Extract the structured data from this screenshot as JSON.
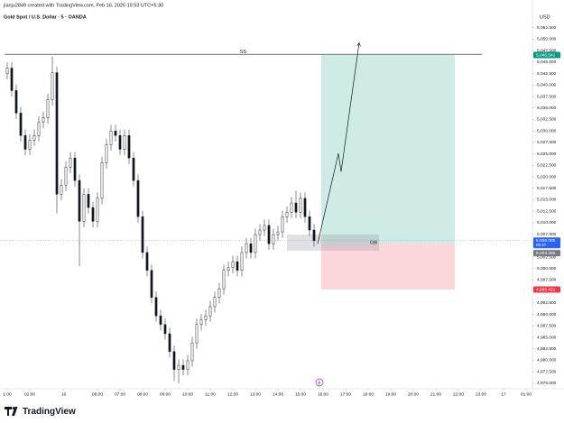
{
  "chart_data": {
    "type": "candlestick",
    "credit": "jianju2849 created with TradingView.com, Feb 16, 2026 15:53 UTC+5:30",
    "title": "Gold Spot / U.S. Dollar · 5 · OANDA",
    "currency": "USD",
    "brand": "TradingView",
    "colors": {
      "up": "#ffffff",
      "down": "#131722",
      "wick": "#131722"
    },
    "grid": false,
    "xlim": [
      0.68,
      24.28
    ],
    "ylim": [
      4974,
      5055
    ],
    "xticks": [
      {
        "value": 1,
        "label": "1:00"
      },
      {
        "value": 2,
        "label": "02:00"
      },
      {
        "value": 3.5,
        "label": "16"
      },
      {
        "value": 5,
        "label": "06:00"
      },
      {
        "value": 6,
        "label": "07:00"
      },
      {
        "value": 7,
        "label": "08:00"
      },
      {
        "value": 8,
        "label": "09:00"
      },
      {
        "value": 9,
        "label": "10:00"
      },
      {
        "value": 10,
        "label": "11:00"
      },
      {
        "value": 11,
        "label": "12:00"
      },
      {
        "value": 12,
        "label": "13:00"
      },
      {
        "value": 13,
        "label": "14:00"
      },
      {
        "value": 14,
        "label": "15:00"
      },
      {
        "value": 15,
        "label": "16:00"
      },
      {
        "value": 16,
        "label": "17:00"
      },
      {
        "value": 17,
        "label": "18:00"
      },
      {
        "value": 18,
        "label": "19:00"
      },
      {
        "value": 19,
        "label": "20:00"
      },
      {
        "value": 20,
        "label": "21:00"
      },
      {
        "value": 21,
        "label": "22:00"
      },
      {
        "value": 22,
        "label": "23:00"
      },
      {
        "value": 23,
        "label": "17"
      },
      {
        "value": 24,
        "label": "01:00"
      }
    ],
    "yticks": [
      {
        "value": 4975,
        "label": "4,975.000"
      },
      {
        "value": 4977.5,
        "label": "4,977.500"
      },
      {
        "value": 4980,
        "label": "4,980.000"
      },
      {
        "value": 4982.5,
        "label": "4,982.500"
      },
      {
        "value": 4985,
        "label": "4,985.000"
      },
      {
        "value": 4987.5,
        "label": "4,987.500"
      },
      {
        "value": 4990,
        "label": "4,990.000"
      },
      {
        "value": 4992.5,
        "label": "4,992.500"
      },
      {
        "value": 4997.5,
        "label": "4,997.500"
      },
      {
        "value": 5000,
        "label": "5,000.000"
      },
      {
        "value": 5002.5,
        "label": "5,002.500"
      },
      {
        "value": 5007.5,
        "label": "5,007.500"
      },
      {
        "value": 5010,
        "label": "5,010.000"
      },
      {
        "value": 5012.5,
        "label": "5,012.500"
      },
      {
        "value": 5015,
        "label": "5,015.000"
      },
      {
        "value": 5017.5,
        "label": "5,017.500"
      },
      {
        "value": 5020,
        "label": "5,020.000"
      },
      {
        "value": 5022.5,
        "label": "5,022.500"
      },
      {
        "value": 5025,
        "label": "5,025.000"
      },
      {
        "value": 5027.5,
        "label": "5,027.500"
      },
      {
        "value": 5030,
        "label": "5,030.000"
      },
      {
        "value": 5032.5,
        "label": "5,032.500"
      },
      {
        "value": 5035,
        "label": "5,035.000"
      },
      {
        "value": 5037.5,
        "label": "5,037.500"
      },
      {
        "value": 5040,
        "label": "5,040.000"
      },
      {
        "value": 5042.5,
        "label": "5,042.500"
      },
      {
        "value": 5045,
        "label": "5,045.000"
      },
      {
        "value": 5047.5,
        "label": "5,047.500"
      },
      {
        "value": 5050,
        "label": "5,050.000"
      },
      {
        "value": 5052.5,
        "label": "5,052.500"
      }
    ],
    "x": [
      1.0,
      1.2,
      1.4,
      1.6,
      1.8,
      2.0,
      2.2,
      2.4,
      2.6,
      2.8,
      3.0,
      3.2,
      3.4,
      3.6,
      3.8,
      4.0,
      4.2,
      4.4,
      4.6,
      4.8,
      5.0,
      5.2,
      5.4,
      5.6,
      5.8,
      6.0,
      6.2,
      6.4,
      6.6,
      6.8,
      7.0,
      7.2,
      7.4,
      7.6,
      7.8,
      8.0,
      8.2,
      8.4,
      8.6,
      8.8,
      9.0,
      9.2,
      9.4,
      9.6,
      9.8,
      10.0,
      10.2,
      10.4,
      10.6,
      10.8,
      11.0,
      11.2,
      11.4,
      11.6,
      11.8,
      12.0,
      12.2,
      12.4,
      12.6,
      12.8,
      13.0,
      13.2,
      13.4,
      13.6,
      13.8,
      14.0,
      14.2,
      14.4,
      14.6
    ],
    "open": [
      5042.5,
      5043.7,
      5038.8,
      5033.9,
      5029.0,
      5026.0,
      5028.0,
      5029.0,
      5031.9,
      5032.9,
      5036.8,
      5042.7,
      5016.2,
      5018.2,
      5022.1,
      5024.1,
      5019.2,
      5010.3,
      5016.2,
      5013.3,
      5010.3,
      5015.3,
      5023.1,
      5027.0,
      5030.0,
      5029.0,
      5026.0,
      5029.0,
      5024.1,
      5019.2,
      5011.3,
      5003.5,
      4999.6,
      4993.7,
      4989.7,
      4987.8,
      4985.8,
      4981.9,
      4978.0,
      4978.9,
      4978.0,
      4979.9,
      4983.8,
      4987.8,
      4988.8,
      4989.7,
      4991.7,
      4993.7,
      4995.6,
      4999.6,
      5000.2,
      5001.5,
      4999.6,
      5003.5,
      5005.4,
      5003.5,
      5007.4,
      5008.4,
      5009.4,
      5005.4,
      5007.4,
      5008.0,
      5011.3,
      5012.3,
      5014.3,
      5012.3,
      5015.3,
      5011.3,
      5008.4
    ],
    "high": [
      5045.0,
      5045.0,
      5040.1,
      5035.2,
      5030.3,
      5029.3,
      5030.3,
      5033.2,
      5034.2,
      5038.1,
      5046.3,
      5044.0,
      5019.5,
      5023.4,
      5025.4,
      5025.4,
      5020.5,
      5017.5,
      5017.5,
      5014.6,
      5016.6,
      5024.4,
      5028.3,
      5031.3,
      5031.3,
      5030.3,
      5030.3,
      5030.3,
      5025.4,
      5020.5,
      5012.6,
      5004.8,
      5000.9,
      4995.0,
      4991.0,
      4989.1,
      4987.1,
      4983.2,
      4980.2,
      4980.2,
      4981.2,
      4985.1,
      4989.1,
      4990.1,
      4991.0,
      4993.0,
      4995.0,
      4996.9,
      5000.9,
      5001.5,
      5002.8,
      5002.8,
      5004.8,
      5006.7,
      5006.7,
      5008.7,
      5009.7,
      5010.7,
      5010.7,
      5008.7,
      5009.3,
      5012.6,
      5013.6,
      5015.6,
      5017.0,
      5016.6,
      5016.6,
      5012.6,
      5009.7
    ],
    "low": [
      5041.2,
      5037.5,
      5032.6,
      5027.7,
      5024.7,
      5024.7,
      5026.7,
      5027.7,
      5030.6,
      5031.6,
      5035.5,
      5012.0,
      5014.9,
      5016.9,
      5020.8,
      5017.9,
      5000.5,
      5009.0,
      5012.0,
      5009.0,
      5009.0,
      5014.0,
      5021.8,
      5025.7,
      5027.7,
      5024.7,
      5024.7,
      5022.8,
      5017.9,
      5010.0,
      5002.2,
      4998.3,
      4992.4,
      4988.4,
      4986.5,
      4984.5,
      4980.6,
      4975.5,
      4975.0,
      4976.7,
      4976.7,
      4978.6,
      4982.5,
      4986.5,
      4987.5,
      4988.4,
      4990.4,
      4992.4,
      4994.3,
      4998.3,
      4998.9,
      4998.3,
      4998.3,
      5002.2,
      5002.2,
      5002.2,
      5006.1,
      5007.1,
      5004.1,
      5004.1,
      5006.1,
      5006.7,
      5010.0,
      5011.0,
      5011.0,
      5011.0,
      5010.0,
      5007.1,
      5004.8
    ],
    "close": [
      5043.7,
      5038.8,
      5033.9,
      5029.0,
      5026.0,
      5028.0,
      5029.0,
      5031.9,
      5032.9,
      5036.8,
      5042.7,
      5016.2,
      5018.2,
      5022.1,
      5024.1,
      5019.2,
      5010.3,
      5016.2,
      5013.3,
      5010.3,
      5015.3,
      5023.1,
      5027.0,
      5030.0,
      5029.0,
      5026.0,
      5029.0,
      5024.1,
      5019.2,
      5011.3,
      5003.5,
      4999.6,
      4993.7,
      4989.7,
      4987.8,
      4985.8,
      4981.9,
      4978.0,
      4978.9,
      4978.0,
      4979.9,
      4983.8,
      4987.8,
      4988.8,
      4989.7,
      4991.7,
      4993.7,
      4995.6,
      4999.6,
      5000.2,
      5001.5,
      4999.6,
      5003.5,
      5005.4,
      5003.5,
      5007.4,
      5008.4,
      5009.4,
      5005.4,
      5007.4,
      5008.0,
      5011.3,
      5012.3,
      5014.3,
      5012.3,
      5015.3,
      5011.3,
      5008.4,
      5006.1
    ],
    "ss_level": {
      "label": "SS",
      "value": 5046.7,
      "x": [
        0.88,
        22.04
      ]
    },
    "order_block": {
      "label": "OB",
      "top": 5007.4,
      "bottom": 5003.9,
      "x": [
        13.4,
        17.48
      ]
    },
    "position": {
      "x": [
        14.92,
        20.84
      ],
      "target": 5046.541,
      "entry": 5005.4,
      "stop": 4995.421
    },
    "arrow": {
      "x": [
        14.76,
        15.68,
        15.8,
        16.6
      ],
      "y": [
        5005.4,
        5025.1,
        5021.1,
        5049.2
      ]
    },
    "price_tags": [
      {
        "label": "5,046.541",
        "value": 5046.541,
        "color": "#089981"
      },
      {
        "label": "5,006.085",
        "value": 5006.085,
        "color": "#2962ff",
        "sub": "05:47"
      },
      {
        "label": "5,003.369",
        "value": 5003.369,
        "color": "#787b86"
      },
      {
        "label": "4,995.421",
        "value": 4995.421,
        "color": "#f23645"
      }
    ]
  }
}
